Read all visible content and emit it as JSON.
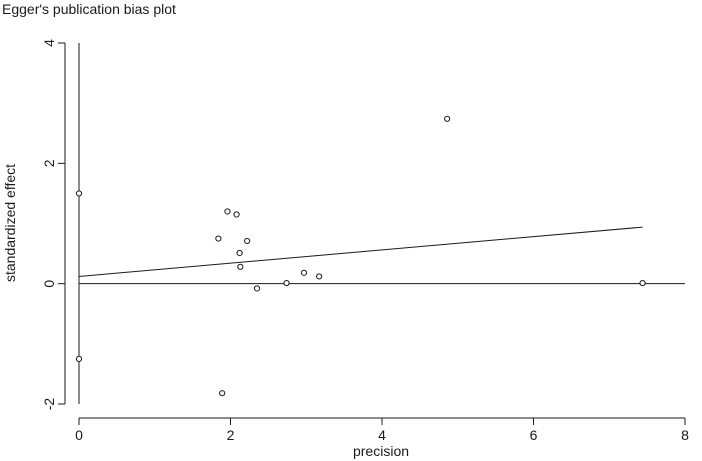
{
  "chart_data": {
    "type": "scatter",
    "title": "Egger's publication bias plot",
    "xlabel": "precision",
    "ylabel": "standardized effect",
    "xlim": [
      0,
      8
    ],
    "ylim": [
      -2,
      4
    ],
    "x_ticks": [
      0,
      2,
      4,
      6,
      8
    ],
    "y_ticks": [
      -2,
      0,
      2,
      4
    ],
    "x_tick_labels": [
      "0",
      "2",
      "4",
      "6",
      "8"
    ],
    "y_tick_labels": [
      "-2",
      "0",
      "2",
      "4"
    ],
    "grid": false,
    "legend": "none",
    "points": [
      {
        "x": 0.0,
        "y": 1.5
      },
      {
        "x": 0.0,
        "y": -1.25
      },
      {
        "x": 1.84,
        "y": 0.75
      },
      {
        "x": 1.89,
        "y": -1.82
      },
      {
        "x": 1.96,
        "y": 1.2
      },
      {
        "x": 2.08,
        "y": 1.15
      },
      {
        "x": 2.12,
        "y": 0.51
      },
      {
        "x": 2.13,
        "y": 0.28
      },
      {
        "x": 2.22,
        "y": 0.71
      },
      {
        "x": 2.35,
        "y": -0.08
      },
      {
        "x": 2.74,
        "y": 0.01
      },
      {
        "x": 2.97,
        "y": 0.18
      },
      {
        "x": 3.17,
        "y": 0.12
      },
      {
        "x": 4.86,
        "y": 2.74
      },
      {
        "x": 7.44,
        "y": 0.01
      }
    ],
    "regression_line": {
      "x": [
        0,
        7.44
      ],
      "y": [
        0.12,
        0.94
      ]
    },
    "reference_lines": {
      "y_zero": {
        "x_from": 0,
        "x_to": 8
      },
      "x_zero": {
        "y_from": -2,
        "y_to": 4
      }
    },
    "colors": {
      "line": "#1a1a1a",
      "marker": "#1a1a1a",
      "background": "#ffffff"
    }
  }
}
